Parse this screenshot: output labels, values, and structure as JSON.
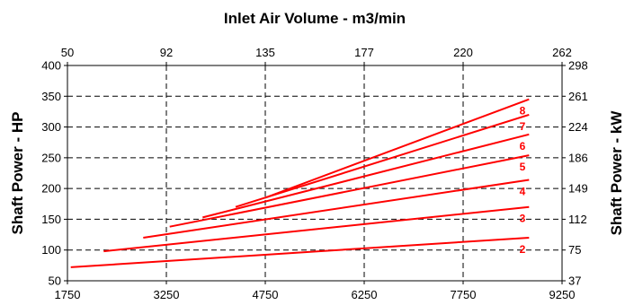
{
  "chart_data": {
    "type": "line",
    "title": "",
    "top_xlabel": "Inlet Air Volume - m3/min",
    "bottom_xlabel": "",
    "ylabel_left": "Shaft Power - HP",
    "ylabel_right": "Shaft Power - kW",
    "xlim": [
      1750,
      9250
    ],
    "ylim": [
      50,
      400
    ],
    "bottom_ticks": [
      1750,
      3250,
      4750,
      6250,
      7750,
      9250
    ],
    "top_ticks": [
      "50",
      "92",
      "135",
      "177",
      "220",
      "262"
    ],
    "left_ticks": [
      50,
      100,
      150,
      200,
      250,
      300,
      350,
      400
    ],
    "right_ticks": [
      "37",
      "75",
      "112",
      "149",
      "186",
      "224",
      "261",
      "298"
    ],
    "grid": true,
    "line_color": "#ff0000",
    "series": [
      {
        "name": "2",
        "x": [
          1800,
          8750
        ],
        "y": [
          72,
          120
        ]
      },
      {
        "name": "3",
        "x": [
          2300,
          8750
        ],
        "y": [
          98,
          170
        ]
      },
      {
        "name": "4",
        "x": [
          2900,
          8750
        ],
        "y": [
          120,
          214
        ]
      },
      {
        "name": "5",
        "x": [
          3300,
          8750
        ],
        "y": [
          138,
          254
        ]
      },
      {
        "name": "6",
        "x": [
          3800,
          8750
        ],
        "y": [
          153,
          288
        ]
      },
      {
        "name": "7",
        "x": [
          4300,
          8750
        ],
        "y": [
          170,
          320
        ]
      },
      {
        "name": "8",
        "x": [
          4750,
          8750
        ],
        "y": [
          185,
          345
        ]
      }
    ]
  }
}
